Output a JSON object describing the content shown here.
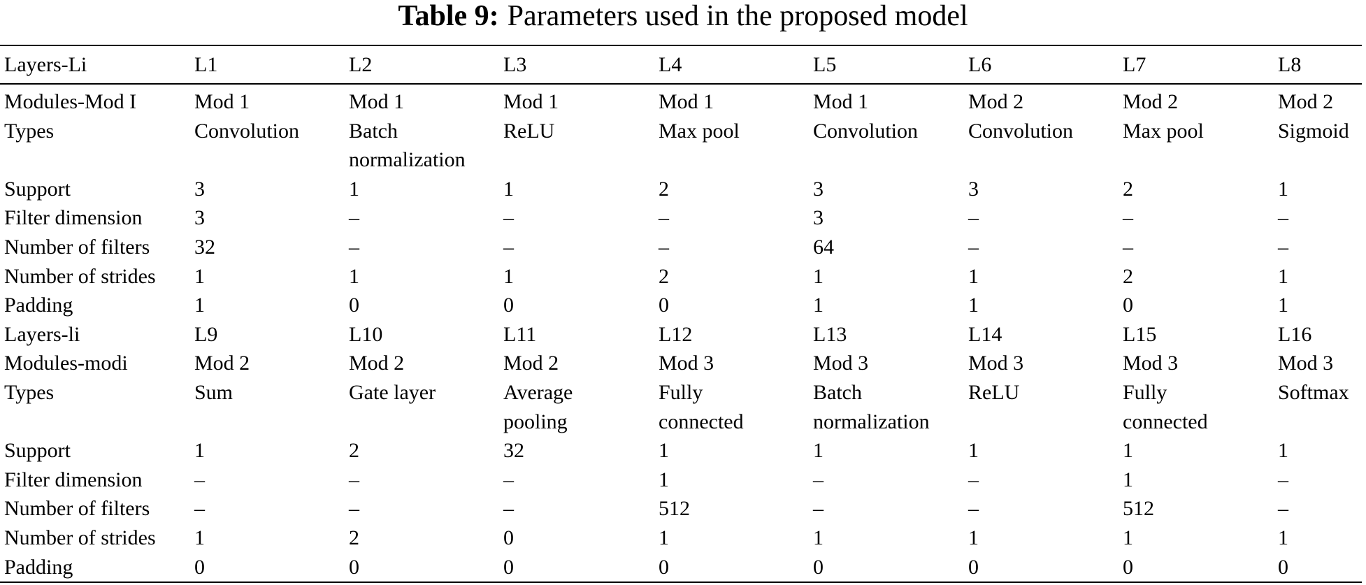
{
  "title": {
    "label": "Table 9:",
    "caption": "Parameters used in the proposed model"
  },
  "table": {
    "header": [
      "Layers-Li",
      "L1",
      "L2",
      "L3",
      "L4",
      "L5",
      "L6",
      "L7",
      "L8"
    ],
    "rows": [
      [
        "Modules-Mod I",
        "Mod 1",
        "Mod 1",
        "Mod 1",
        "Mod 1",
        "Mod 1",
        "Mod 2",
        "Mod 2",
        "Mod 2"
      ],
      [
        "Types",
        "Convolution",
        "Batch normalization",
        "ReLU",
        "Max pool",
        "Convolution",
        "Convolution",
        "Max pool",
        "Sigmoid"
      ],
      [
        "Support",
        "3",
        "1",
        "1",
        "2",
        "3",
        "3",
        "2",
        "1"
      ],
      [
        "Filter dimension",
        "3",
        "–",
        "–",
        "–",
        "3",
        "–",
        "–",
        "–"
      ],
      [
        "Number of filters",
        "32",
        "–",
        "–",
        "–",
        "64",
        "–",
        "–",
        "–"
      ],
      [
        "Number of strides",
        "1",
        "1",
        "1",
        "2",
        "1",
        "1",
        "2",
        "1"
      ],
      [
        "Padding",
        "1",
        "0",
        "0",
        "0",
        "1",
        "1",
        "0",
        "1"
      ],
      [
        "Layers-li",
        "L9",
        "L10",
        "L11",
        "L12",
        "L13",
        "L14",
        "L15",
        "L16"
      ],
      [
        "Modules-modi",
        "Mod 2",
        "Mod 2",
        "Mod 2",
        "Mod 3",
        "Mod 3",
        "Mod 3",
        "Mod 3",
        "Mod 3"
      ],
      [
        "Types",
        "Sum",
        "Gate layer",
        "Average pooling",
        "Fully connected",
        "Batch normalization",
        "ReLU",
        "Fully connected",
        "Softmax"
      ],
      [
        "Support",
        "1",
        "2",
        "32",
        "1",
        "1",
        "1",
        "1",
        "1"
      ],
      [
        "Filter dimension",
        "–",
        "–",
        "–",
        "1",
        "–",
        "–",
        "1",
        "–"
      ],
      [
        "Number of filters",
        "–",
        "–",
        "–",
        "512",
        "–",
        "–",
        "512",
        "–"
      ],
      [
        "Number of strides",
        "1",
        "2",
        "0",
        "1",
        "1",
        "1",
        "1",
        "1"
      ],
      [
        "Padding",
        "0",
        "0",
        "0",
        "0",
        "0",
        "0",
        "0",
        "0"
      ]
    ]
  }
}
